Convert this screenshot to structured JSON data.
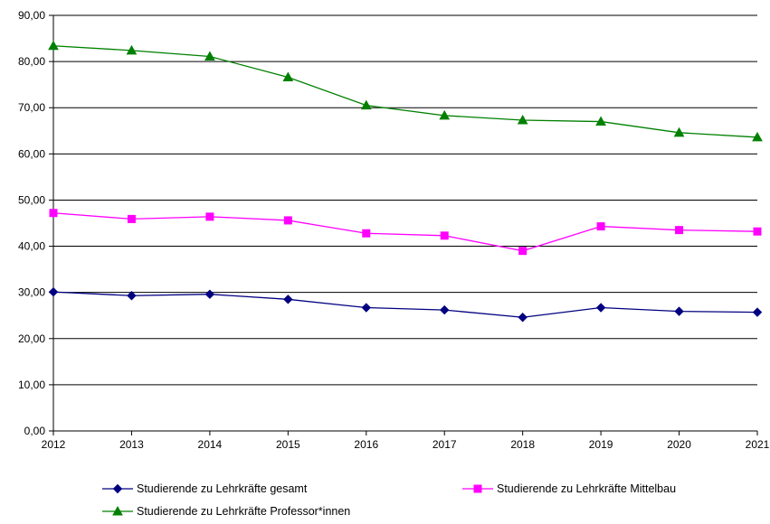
{
  "chart_data": {
    "type": "line",
    "title": "",
    "xlabel": "",
    "ylabel": "",
    "categories": [
      "2012",
      "2013",
      "2014",
      "2015",
      "2016",
      "2017",
      "2018",
      "2019",
      "2020",
      "2021"
    ],
    "y_ticks": [
      "0,00",
      "10,00",
      "20,00",
      "30,00",
      "40,00",
      "50,00",
      "60,00",
      "70,00",
      "80,00",
      "90,00"
    ],
    "ylim": [
      0,
      90
    ],
    "grid": "horizontal",
    "legend_position": "bottom",
    "series": [
      {
        "name": "Studierende zu Lehrkräfte gesamt",
        "color": "#000080",
        "marker": "diamond",
        "values": [
          30.1,
          29.3,
          29.6,
          28.5,
          26.7,
          26.2,
          24.6,
          26.7,
          25.9,
          25.7
        ]
      },
      {
        "name": "Studierende zu Lehrkräfte Mittelbau",
        "color": "#ff00ff",
        "marker": "square",
        "values": [
          47.2,
          45.9,
          46.4,
          45.6,
          42.8,
          42.3,
          39.0,
          44.3,
          43.5,
          43.2
        ]
      },
      {
        "name": "Studierende zu Lehrkräfte Professor*innen",
        "color": "#008000",
        "marker": "triangle",
        "values": [
          83.4,
          82.4,
          81.1,
          76.6,
          70.5,
          68.3,
          67.3,
          67.0,
          64.6,
          63.6
        ]
      }
    ]
  }
}
